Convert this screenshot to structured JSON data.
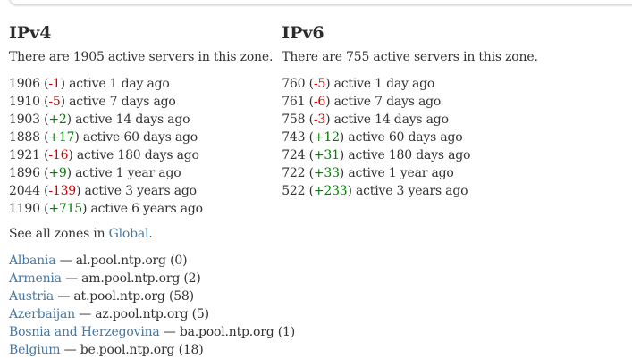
{
  "ipv4": {
    "title": "IPv4",
    "summary": "There are 1905 active servers in this zone.",
    "history": [
      {
        "count": "1906",
        "delta": "-1",
        "label": "active 1 day ago"
      },
      {
        "count": "1910",
        "delta": "-5",
        "label": "active 7 days ago"
      },
      {
        "count": "1903",
        "delta": "+2",
        "label": "active 14 days ago"
      },
      {
        "count": "1888",
        "delta": "+17",
        "label": "active 60 days ago"
      },
      {
        "count": "1921",
        "delta": "-16",
        "label": "active 180 days ago"
      },
      {
        "count": "1896",
        "delta": "+9",
        "label": "active 1 year ago"
      },
      {
        "count": "2044",
        "delta": "-139",
        "label": "active 3 years ago"
      },
      {
        "count": "1190",
        "delta": "+715",
        "label": "active 6 years ago"
      }
    ]
  },
  "ipv6": {
    "title": "IPv6",
    "summary": "There are 755 active servers in this zone.",
    "history": [
      {
        "count": "760",
        "delta": "-5",
        "label": "active 1 day ago"
      },
      {
        "count": "761",
        "delta": "-6",
        "label": "active 7 days ago"
      },
      {
        "count": "758",
        "delta": "-3",
        "label": "active 14 days ago"
      },
      {
        "count": "743",
        "delta": "+12",
        "label": "active 60 days ago"
      },
      {
        "count": "724",
        "delta": "+31",
        "label": "active 180 days ago"
      },
      {
        "count": "722",
        "delta": "+33",
        "label": "active 1 year ago"
      },
      {
        "count": "522",
        "delta": "+233",
        "label": "active 3 years ago"
      }
    ]
  },
  "see_all": {
    "prefix": "See all zones in ",
    "link_label": "Global",
    "suffix": "."
  },
  "zones": [
    {
      "name": "Albania",
      "host": "al.pool.ntp.org",
      "count": "(0)"
    },
    {
      "name": "Armenia",
      "host": "am.pool.ntp.org",
      "count": "(2)"
    },
    {
      "name": "Austria",
      "host": "at.pool.ntp.org",
      "count": "(58)"
    },
    {
      "name": "Azerbaijan",
      "host": "az.pool.ntp.org",
      "count": "(5)"
    },
    {
      "name": "Bosnia and Herzegovina",
      "host": "ba.pool.ntp.org",
      "count": "(1)"
    },
    {
      "name": "Belgium",
      "host": "be.pool.ntp.org",
      "count": "(18)"
    }
  ],
  "punct": {
    "paren_open": "(",
    "paren_close": ")",
    "dash": "—"
  },
  "colors": {
    "text": "#333333",
    "link": "#4678a5",
    "increase": "#008000",
    "decrease": "#d40000",
    "panel_border": "#d9d9d9"
  }
}
